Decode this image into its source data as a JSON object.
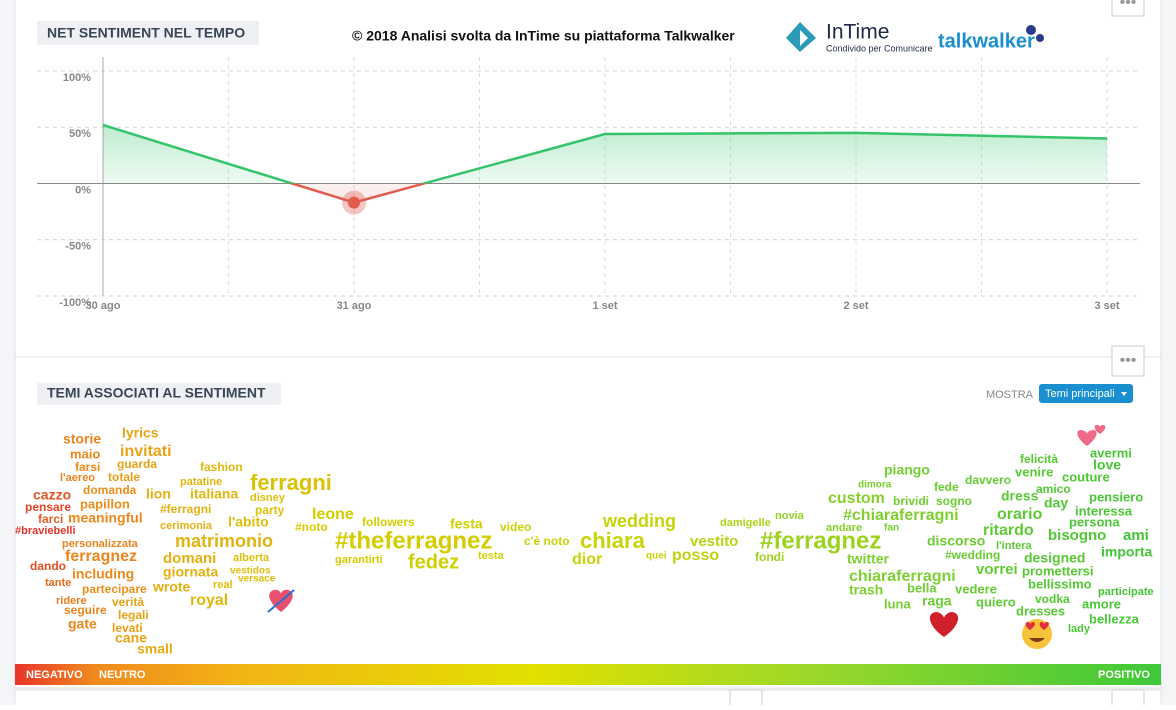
{
  "header": {
    "copyright": "© 2018  Analisi svolta da InTime su piattaforma Talkwalker",
    "logo_name": "InTime",
    "logo_tagline": "Condivido per Comunicare",
    "partner": "talkwalker"
  },
  "chart_data": {
    "type": "area",
    "title": "NET SENTIMENT NEL TEMPO",
    "categories": [
      "30 ago",
      "31 ago",
      "1 set",
      "2 set",
      "3 set"
    ],
    "values": [
      52,
      -17,
      44,
      45,
      40
    ],
    "positive_color": "#35c46a",
    "negative_color": "#e05a4e",
    "ylim": [
      -100,
      100
    ],
    "yticks": [
      {
        "value": -100,
        "label": "-100%"
      },
      {
        "value": -50,
        "label": "-50%"
      },
      {
        "value": 0,
        "label": "0%"
      },
      {
        "value": 50,
        "label": "50%"
      },
      {
        "value": 100,
        "label": "100%"
      }
    ],
    "grid": true
  },
  "word_cloud": {
    "title": "TEMI ASSOCIATI AL SENTIMENT",
    "show_label": "MOSTRA",
    "show_button": "Temi principali",
    "scale_labels": [
      "NEGATIVO",
      "NEUTRO",
      "POSITIVO"
    ],
    "words": [
      "storie",
      "lyrics",
      "maio",
      "invitati",
      "farsi",
      "guarda",
      "l'aereo",
      "totale",
      "domanda",
      "cazzo",
      "lion",
      "pensare",
      "papillon",
      "farci",
      "meaningful",
      "#braviebelli",
      "personalizzata",
      "ferragnez",
      "dando",
      "including",
      "tante",
      "partecipare",
      "ridere",
      "verità",
      "seguire",
      "legali",
      "gate",
      "levati",
      "cane",
      "small",
      "fashion",
      "patatine",
      "italiana",
      "disney",
      "ferragni",
      "#ferragni",
      "party",
      "cerimonia",
      "l'abito",
      "leone",
      "#noto",
      "followers",
      "festa",
      "video",
      "matrimonio",
      "#theferragnez",
      "garantirti",
      "fedez",
      "testa",
      "c'è noto",
      "wedding",
      "chiara",
      "dior",
      "quei",
      "posso",
      "vestito",
      "damigelle",
      "novia",
      "fondi",
      "#ferragnez",
      "domani",
      "alberta",
      "vestidos",
      "versace",
      "giornata",
      "wrote",
      "real",
      "royal",
      "piango",
      "dimora",
      "davvero",
      "fede",
      "custom",
      "brividi",
      "sogno",
      "felicità",
      "venire",
      "avermi",
      "love",
      "couture",
      "amico",
      "dress",
      "pensiero",
      "day",
      "#chiaraferragni",
      "orario",
      "interessa",
      "andare",
      "fan",
      "persona",
      "ritardo",
      "l'intera",
      "discorso",
      "bisogno",
      "ami",
      "#wedding",
      "designed",
      "importa",
      "twitter",
      "vorrei",
      "promettersi",
      "chiaraferragni",
      "bellissimo",
      "trash",
      "bella",
      "vedere",
      "participate",
      "luna",
      "raga",
      "quiero",
      "dresses",
      "amore",
      "vodka",
      "bellezza",
      "lady"
    ]
  }
}
